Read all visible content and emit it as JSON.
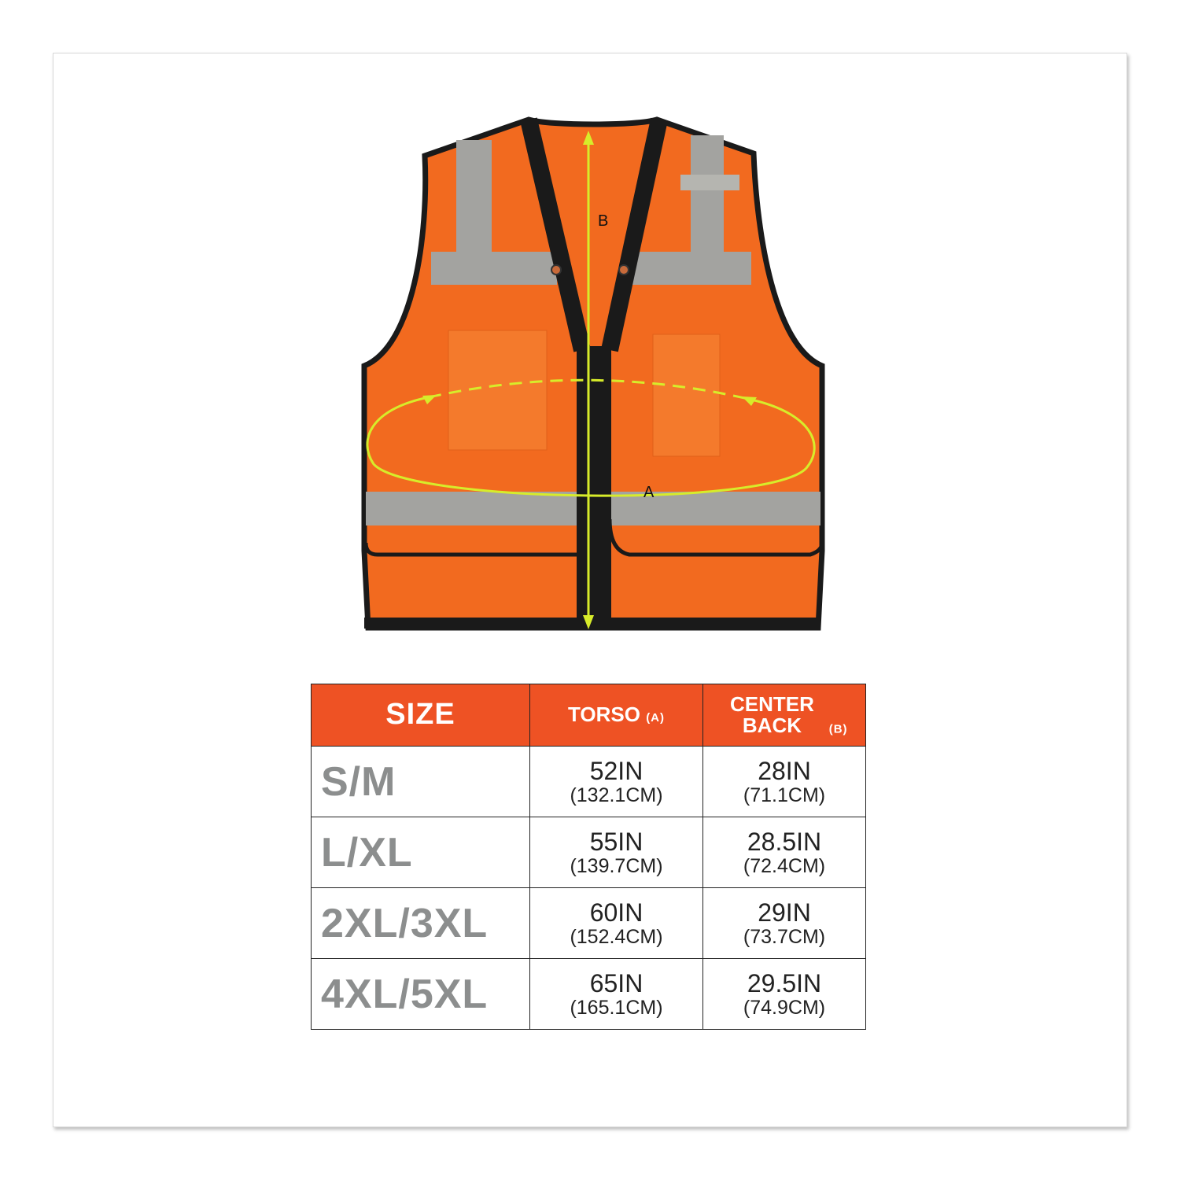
{
  "diagram": {
    "label_b": "B",
    "label_a": "A",
    "colors": {
      "vest": "#f26a1f",
      "trim": "#1a1a1a",
      "reflective": "#a3a3a0",
      "measure": "#d7ec2a"
    }
  },
  "table": {
    "header_color": "#ee5224",
    "headers": [
      {
        "main": "SIZE",
        "sub": ""
      },
      {
        "main": "TORSO",
        "sub": "(A)"
      },
      {
        "main": "CENTER BACK",
        "sub": "(B)"
      }
    ],
    "rows": [
      {
        "size": "S/M",
        "torso_in": "52IN",
        "torso_cm": "(132.1CM)",
        "back_in": "28IN",
        "back_cm": "(71.1CM)"
      },
      {
        "size": "L/XL",
        "torso_in": "55IN",
        "torso_cm": "(139.7CM)",
        "back_in": "28.5IN",
        "back_cm": "(72.4CM)"
      },
      {
        "size": "2XL/3XL",
        "torso_in": "60IN",
        "torso_cm": "(152.4CM)",
        "back_in": "29IN",
        "back_cm": "(73.7CM)"
      },
      {
        "size": "4XL/5XL",
        "torso_in": "65IN",
        "torso_cm": "(165.1CM)",
        "back_in": "29.5IN",
        "back_cm": "(74.9CM)"
      }
    ]
  }
}
